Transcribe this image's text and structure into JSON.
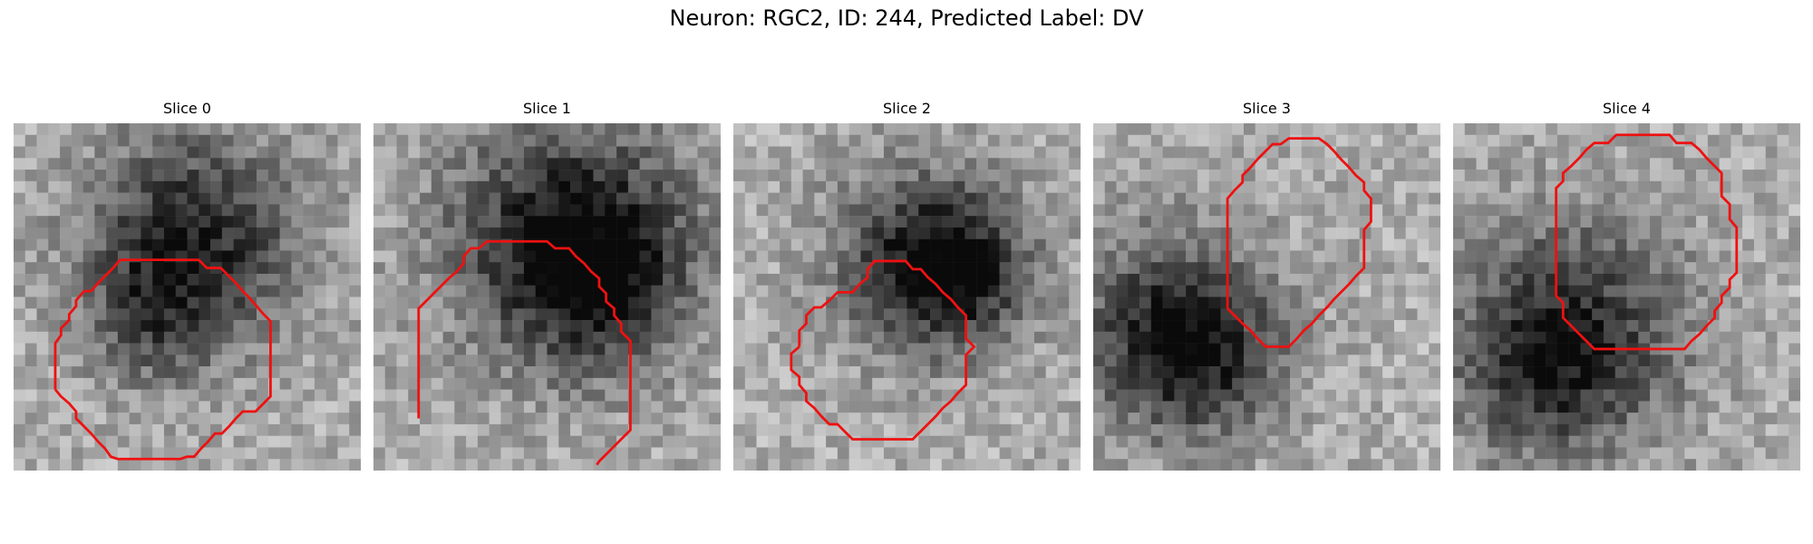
{
  "figure": {
    "title": "Neuron: RGC2, ID: 244, Predicted Label: DV"
  },
  "panels": [
    {
      "title": "Slice 0",
      "blobs": [
        {
          "cx": 15.5,
          "cy": 10,
          "r": 6.5,
          "depth": 0.55
        },
        {
          "cx": 12,
          "cy": 17,
          "r": 4,
          "depth": 0.25
        }
      ]
    },
    {
      "title": "Slice 1",
      "blobs": [
        {
          "cx": 17,
          "cy": 10,
          "r": 7.5,
          "depth": 0.6
        },
        {
          "cx": 20,
          "cy": 14,
          "r": 4.5,
          "depth": 0.3
        }
      ]
    },
    {
      "title": "Slice 2",
      "blobs": [
        {
          "cx": 17,
          "cy": 12,
          "r": 5.5,
          "depth": 0.6
        },
        {
          "cx": 20,
          "cy": 13,
          "r": 3.5,
          "depth": 0.25
        }
      ]
    },
    {
      "title": "Slice 3",
      "blobs": [
        {
          "cx": 7,
          "cy": 18,
          "r": 6,
          "depth": 0.55
        },
        {
          "cx": 10,
          "cy": 21,
          "r": 4,
          "depth": 0.2
        }
      ]
    },
    {
      "title": "Slice 4",
      "blobs": [
        {
          "cx": 10,
          "cy": 18,
          "r": 7,
          "depth": 0.5
        },
        {
          "cx": 8,
          "cy": 22,
          "r": 4.5,
          "depth": 0.2
        }
      ]
    }
  ],
  "image_style": {
    "grid": 30,
    "base_gray": 0.68,
    "noise": 0.28,
    "contour_color": "#ee1111"
  }
}
